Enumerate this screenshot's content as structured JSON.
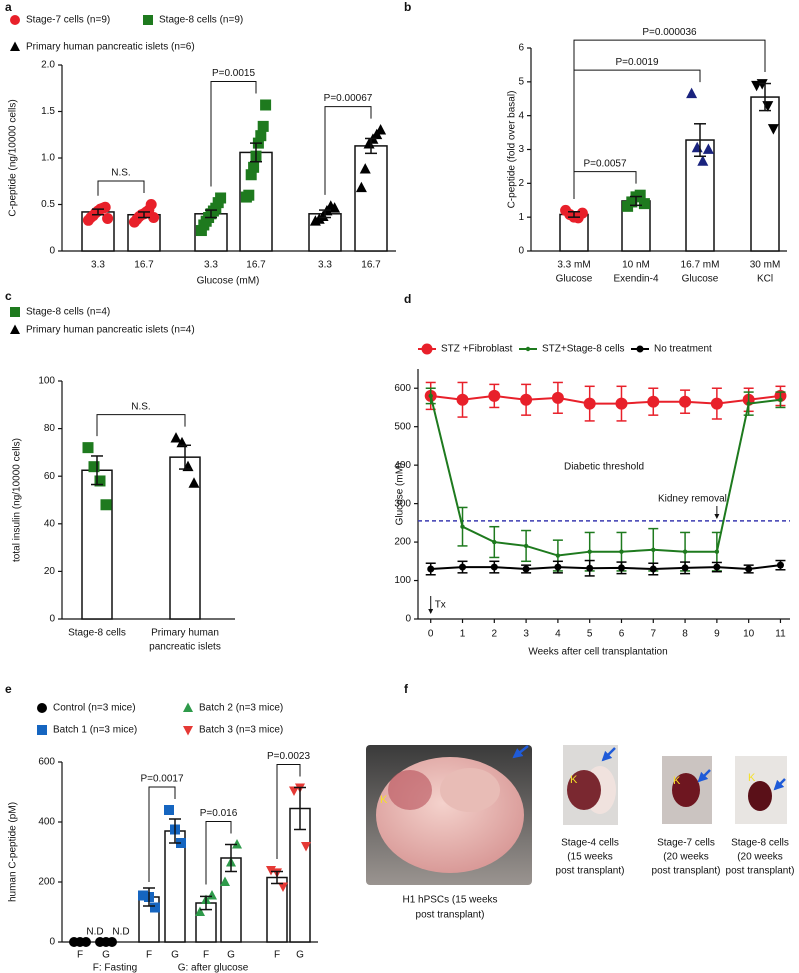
{
  "chart_data": [
    {
      "panel": "a",
      "type": "bar",
      "ylabel": "C-peptide (ng/10000 cells)",
      "xlabel": "Glucose (mM)",
      "categories": [
        "3.3",
        "16.7",
        "3.3",
        "16.7",
        "3.3",
        "16.7"
      ],
      "ylim": [
        0,
        2
      ],
      "yticks": [
        0,
        0.5,
        {
          "value": 1,
          "label": "1.0"
        },
        1.5,
        {
          "value": 2,
          "label": "2.0"
        }
      ],
      "series": [
        {
          "name": "Stage-7 cells (n=9)",
          "color": "#e8202a",
          "marker": "circle",
          "comparison": "N.S.",
          "values": [
            0.42,
            0.39,
            null,
            null,
            null,
            null
          ],
          "errors": [
            0.03,
            0.03,
            null,
            null,
            null,
            null
          ],
          "points": [
            [
              0.33,
              0.36,
              0.38,
              0.41,
              0.43,
              0.45,
              0.46,
              0.47,
              0.35
            ],
            [
              0.31,
              0.34,
              0.37,
              0.39,
              0.4,
              0.42,
              0.44,
              0.5,
              0.36
            ],
            null,
            null,
            null,
            null
          ]
        },
        {
          "name": "Stage-8 cells (n=9)",
          "color": "#1e7a1e",
          "marker": "square",
          "comparison": "P=0.0015",
          "values": [
            null,
            null,
            0.4,
            1.06,
            null,
            null
          ],
          "errors": [
            null,
            null,
            0.04,
            0.1,
            null,
            null
          ],
          "points": [
            null,
            null,
            [
              0.22,
              0.28,
              0.32,
              0.36,
              0.4,
              0.43,
              0.46,
              0.52,
              0.57
            ],
            [
              0.58,
              0.6,
              0.82,
              0.9,
              1.02,
              1.16,
              1.24,
              1.34,
              1.57
            ],
            null,
            null
          ]
        },
        {
          "name": "Primary human pancreatic islets (n=6)",
          "color": "#000000",
          "marker": "triangle",
          "comparison": "P=0.00067",
          "values": [
            null,
            null,
            null,
            null,
            0.4,
            1.13
          ],
          "errors": [
            null,
            null,
            null,
            null,
            0.04,
            0.08
          ],
          "points": [
            null,
            null,
            null,
            null,
            [
              0.32,
              0.34,
              0.37,
              0.43,
              0.48,
              0.46
            ],
            [
              0.68,
              0.88,
              1.15,
              1.2,
              1.25,
              1.3
            ]
          ]
        }
      ]
    },
    {
      "panel": "b",
      "type": "bar",
      "ylabel": "C-peptide (fold over basal)",
      "categories": [
        [
          "3.3 mM",
          "Glucose"
        ],
        [
          "10 nM",
          "Exendin-4"
        ],
        [
          "16.7 mM",
          "Glucose"
        ],
        [
          "30 mM",
          "KCl"
        ]
      ],
      "ylim": [
        0,
        6
      ],
      "yticks": [
        0,
        1,
        2,
        3,
        4,
        5,
        6
      ],
      "comparisons": [
        null,
        "P=0.0057",
        "P=0.0019",
        "P=0.000036"
      ],
      "series": [
        {
          "colors": [
            "#e8202a",
            "#1e7a1e",
            "#1a237e",
            "#000000"
          ],
          "markers": [
            "circle",
            "square",
            "triangle",
            "triangle-down"
          ],
          "values": [
            1.08,
            1.48,
            3.28,
            4.55
          ],
          "errors": [
            0.08,
            0.13,
            0.48,
            0.4
          ],
          "points": [
            [
              1.2,
              1.08,
              1.0,
              0.98,
              1.12
            ],
            [
              1.32,
              1.45,
              1.6,
              1.65,
              1.4
            ],
            [
              4.65,
              3.05,
              2.65,
              3.0
            ],
            [
              4.9,
              4.95,
              4.3,
              3.62
            ]
          ]
        }
      ]
    },
    {
      "panel": "c",
      "type": "bar",
      "ylabel": "total insulin (ng/10000 cells)",
      "categories": [
        [
          "Stage-8 cells"
        ],
        [
          "Primary human",
          "pancreatic islets"
        ]
      ],
      "ylim": [
        0,
        100
      ],
      "yticks": [
        0,
        20,
        40,
        60,
        80,
        100
      ],
      "comparisons": [
        null,
        "N.S."
      ],
      "series": [
        {
          "name": "Stage-8 cells (n=4)",
          "color": "#1e7a1e",
          "marker": "square",
          "values": [
            62.5,
            null
          ],
          "errors": [
            6,
            null
          ],
          "points": [
            [
              72,
              64,
              58,
              48
            ],
            null
          ]
        },
        {
          "name": "Primary human pancreatic islets (n=4)",
          "color": "#000000",
          "marker": "triangle",
          "values": [
            null,
            68
          ],
          "errors": [
            null,
            5
          ],
          "points": [
            null,
            [
              76,
              74,
              64,
              57
            ]
          ]
        }
      ]
    },
    {
      "panel": "d",
      "type": "line",
      "ylabel": "Glucose (mM)",
      "xlabel": "Weeks after cell transplantation",
      "x": [
        0,
        1,
        2,
        3,
        4,
        5,
        6,
        7,
        8,
        9,
        10,
        11
      ],
      "xlim": [
        -0.4,
        11.3
      ],
      "xticks": [
        0,
        1,
        2,
        3,
        4,
        5,
        6,
        7,
        8,
        9,
        10,
        11
      ],
      "ylim": [
        0,
        650
      ],
      "yticks": [
        0,
        100,
        200,
        300,
        400,
        500,
        600
      ],
      "threshold": {
        "value": 255,
        "label": "Diabetic threshold",
        "color": "#3a3ab0"
      },
      "annotations": [
        {
          "text": "Kidney removal",
          "x": 9
        },
        {
          "text": "Tx",
          "x": 0
        }
      ],
      "series": [
        {
          "name": "STZ +Fibroblast",
          "color": "#e8202a",
          "marker": "circle",
          "values": [
            580,
            570,
            580,
            570,
            575,
            560,
            560,
            565,
            565,
            560,
            570,
            580
          ],
          "errors": [
            35,
            45,
            30,
            40,
            40,
            45,
            45,
            35,
            30,
            40,
            30,
            25
          ]
        },
        {
          "name": "STZ+Stage-8 cells",
          "color": "#1e7a1e",
          "marker": "dot",
          "values": [
            580,
            240,
            200,
            190,
            165,
            175,
            175,
            180,
            175,
            175,
            560,
            570
          ],
          "errors": [
            20,
            50,
            40,
            40,
            40,
            50,
            50,
            55,
            50,
            50,
            30,
            20
          ]
        },
        {
          "name": "No treatment",
          "color": "#000000",
          "marker": "circle-small",
          "values": [
            130,
            135,
            135,
            130,
            135,
            132,
            133,
            130,
            133,
            135,
            130,
            140
          ],
          "errors": [
            15,
            15,
            15,
            10,
            15,
            20,
            15,
            15,
            15,
            12,
            10,
            12
          ]
        }
      ]
    },
    {
      "panel": "e",
      "type": "bar",
      "ylabel": "human C-peptide (pM)",
      "xlabel": [
        "F: Fasting",
        "G: after glucose"
      ],
      "categories": [
        "F",
        "G",
        "F",
        "G",
        "F",
        "G",
        "F",
        "G"
      ],
      "ylim": [
        0,
        600
      ],
      "yticks": [
        0,
        200,
        400,
        600
      ],
      "series": [
        {
          "name": "Control (n=3 mice)",
          "color": "#000000",
          "marker": "circle",
          "values": [
            null,
            null,
            null,
            null,
            null,
            null,
            null,
            null
          ],
          "value_labels": [
            "N.D",
            "N.D",
            null,
            null,
            null,
            null,
            null,
            null
          ],
          "points": [
            [
              0,
              0,
              0
            ],
            [
              0,
              0,
              0
            ],
            null,
            null,
            null,
            null,
            null,
            null
          ]
        },
        {
          "name": "Batch 1 (n=3 mice)",
          "color": "#1565c0",
          "marker": "square",
          "comparison": "P=0.0017",
          "values": [
            null,
            null,
            150,
            370,
            null,
            null,
            null,
            null
          ],
          "errors": [
            null,
            null,
            30,
            40,
            null,
            null,
            null,
            null
          ],
          "points": [
            null,
            null,
            [
              155,
              150,
              115
            ],
            [
              440,
              375,
              330
            ],
            null,
            null,
            null,
            null
          ]
        },
        {
          "name": "Batch 2 (n=3 mice)",
          "color": "#2e9a4a",
          "marker": "triangle",
          "comparison": "P=0.016",
          "values": [
            null,
            null,
            null,
            null,
            130,
            280,
            null,
            null
          ],
          "errors": [
            null,
            null,
            null,
            null,
            22,
            45,
            null,
            null
          ],
          "points": [
            null,
            null,
            null,
            null,
            [
              100,
              140,
              155
            ],
            [
              200,
              265,
              325
            ],
            null,
            null
          ]
        },
        {
          "name": "Batch 3 (n=3 mice)",
          "color": "#e53935",
          "marker": "triangle-down",
          "comparison": "P=0.0023",
          "values": [
            null,
            null,
            null,
            null,
            null,
            null,
            215,
            445
          ],
          "errors": [
            null,
            null,
            null,
            null,
            null,
            null,
            20,
            70
          ],
          "points": [
            null,
            null,
            null,
            null,
            null,
            null,
            [
              240,
              232,
              185
            ],
            [
              505,
              515,
              320
            ]
          ]
        }
      ]
    }
  ],
  "panel_f": {
    "panel": "f",
    "photos": [
      {
        "label": "K",
        "caption": [
          "H1 hPSCs (15 weeks",
          "post transplant)"
        ]
      },
      {
        "label": "K",
        "caption": [
          "Stage-4 cells",
          "(15 weeks",
          "post transplant)"
        ]
      },
      {
        "label": "K",
        "caption": [
          "Stage-7 cells",
          "(20 weeks",
          "post transplant)"
        ]
      },
      {
        "label": "K",
        "caption": [
          "Stage-8 cells",
          "(20 weeks",
          "post transplant)"
        ]
      }
    ]
  }
}
